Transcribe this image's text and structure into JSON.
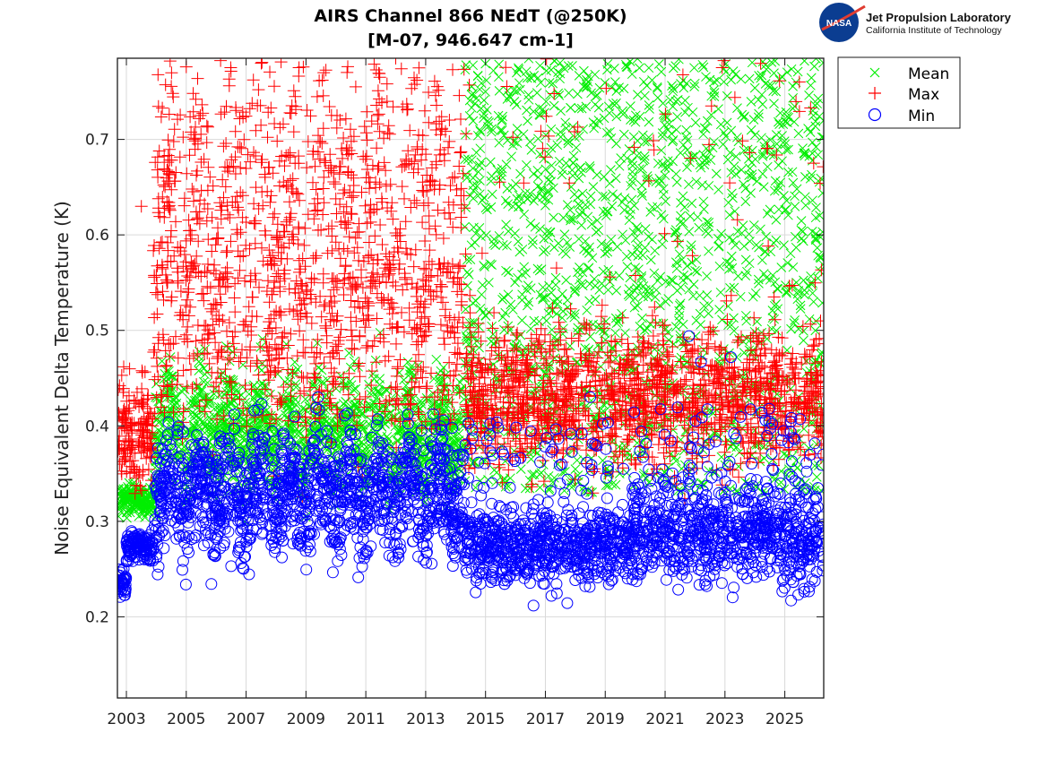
{
  "chart_data": {
    "type": "scatter",
    "title": [
      "AIRS Channel 866 NEdT (@250K)",
      "[M-07, 946.647 cm-1]"
    ],
    "xlabel": "",
    "ylabel": "Noise Equivalent Delta Temperature (K)",
    "xlim": [
      2002.7,
      2026.3
    ],
    "ylim": [
      0.115,
      0.785
    ],
    "x_ticks": [
      "2003",
      "2005",
      "2007",
      "2009",
      "2011",
      "2013",
      "2015",
      "2017",
      "2019",
      "2021",
      "2023",
      "2025"
    ],
    "x_tick_values": [
      2003,
      2005,
      2007,
      2009,
      2011,
      2013,
      2015,
      2017,
      2019,
      2021,
      2023,
      2025
    ],
    "y_ticks": [
      "0.2",
      "0.3",
      "0.4",
      "0.5",
      "0.6",
      "0.7"
    ],
    "y_tick_values": [
      0.2,
      0.3,
      0.4,
      0.5,
      0.6,
      0.7
    ],
    "grid": true,
    "legend_position": "outside-top-right",
    "series": [
      {
        "name": "Mean",
        "marker": "x",
        "color": "#00ee00",
        "description_points": "daily values; ~0.32 (2002.7-2003.9), ~0.36-0.43 with seasonal cycles (2004-2014.3), then widely scattered 0.33-0.79 (2014.3-2026.3)",
        "segments": [
          {
            "x_start": 2002.7,
            "x_end": 2003.9,
            "center": 0.322,
            "spread": 0.008
          },
          {
            "x_start": 2003.9,
            "x_end": 2014.3,
            "center": 0.395,
            "spread": 0.03
          },
          {
            "x_start": 2014.3,
            "x_end": 2026.3,
            "low": 0.33,
            "high": 0.785
          }
        ]
      },
      {
        "name": "Max",
        "marker": "+",
        "color": "#ff0000",
        "segments": [
          {
            "x_start": 2002.7,
            "x_end": 2003.9,
            "center": 0.395,
            "spread": 0.03
          },
          {
            "x_start": 2003.9,
            "x_end": 2014.3,
            "center": 0.62,
            "spread": 0.09,
            "peak": 0.785
          },
          {
            "x_start": 2014.3,
            "x_end": 2026.3,
            "center": 0.43,
            "spread": 0.035,
            "outlier_high": 0.79
          }
        ],
        "outliers": [
          [
            2003.5,
            0.63
          ],
          [
            2005.0,
            0.776
          ],
          [
            2012.0,
            0.785
          ],
          [
            2013.9,
            0.773
          ]
        ]
      },
      {
        "name": "Min",
        "marker": "o",
        "color": "#0000ff",
        "segments": [
          {
            "x_start": 2002.7,
            "x_end": 2003.0,
            "center": 0.235,
            "spread": 0.008
          },
          {
            "x_start": 2003.0,
            "x_end": 2003.9,
            "center": 0.273,
            "spread": 0.008
          },
          {
            "x_start": 2003.9,
            "x_end": 2014.3,
            "center": 0.33,
            "spread": 0.03
          },
          {
            "x_start": 2014.3,
            "x_end": 2019.9,
            "center": 0.275,
            "spread": 0.02
          },
          {
            "x_start": 2019.9,
            "x_end": 2024.9,
            "center": 0.29,
            "spread": 0.025
          },
          {
            "x_start": 2024.9,
            "x_end": 2026.3,
            "center": 0.28,
            "spread": 0.025
          }
        ],
        "outliers": [
          [
            2006.5,
            0.253
          ],
          [
            2017.2,
            0.222
          ],
          [
            2021.8,
            0.494
          ],
          [
            2018.5,
            0.43
          ],
          [
            2022.2,
            0.467
          ],
          [
            2023.2,
            0.472
          ]
        ]
      }
    ]
  },
  "legend": {
    "items": [
      {
        "label": "Mean",
        "marker": "x",
        "color": "#00ee00"
      },
      {
        "label": "Max",
        "marker": "+",
        "color": "#ff0000"
      },
      {
        "label": "Min",
        "marker": "o",
        "color": "#0000ff"
      }
    ]
  },
  "logo": {
    "emblem_text": "NASA",
    "line1": "Jet Propulsion Laboratory",
    "line2": "California Institute of Technology"
  },
  "colors": {
    "axis": "#1a1a1a",
    "grid": "#d9d9d9"
  }
}
